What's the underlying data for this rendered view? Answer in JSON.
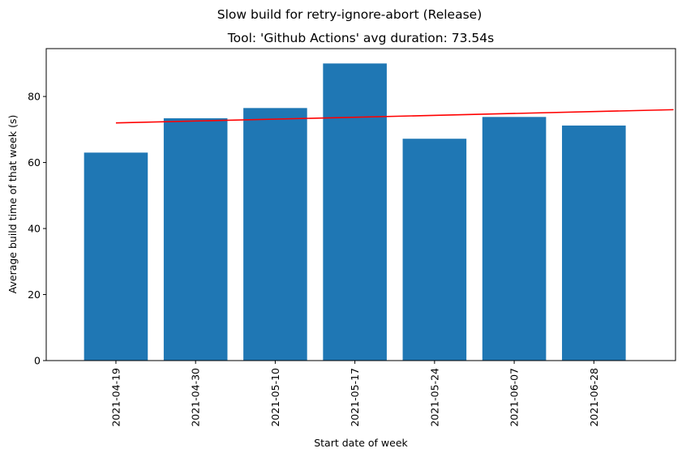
{
  "chart_data": {
    "type": "bar",
    "suptitle": "Slow build for retry-ignore-abort (Release)",
    "title": "Tool: 'Github Actions' avg duration: 73.54s",
    "xlabel": "Start date of week",
    "ylabel": "Average build time of that week (s)",
    "categories": [
      "2021-04-19",
      "2021-04-30",
      "2021-05-10",
      "2021-05-17",
      "2021-05-24",
      "2021-06-07",
      "2021-06-28"
    ],
    "values": [
      63.0,
      73.4,
      76.5,
      90.0,
      67.2,
      73.8,
      71.2
    ],
    "ylim": [
      0,
      94.5
    ],
    "yticks": [
      0,
      20,
      40,
      60,
      80
    ],
    "bar_color": "#1f77b4",
    "trend_line": {
      "color": "#ff0000",
      "start": 72.0,
      "end": 76.0
    },
    "grid": false,
    "legend": "none"
  }
}
